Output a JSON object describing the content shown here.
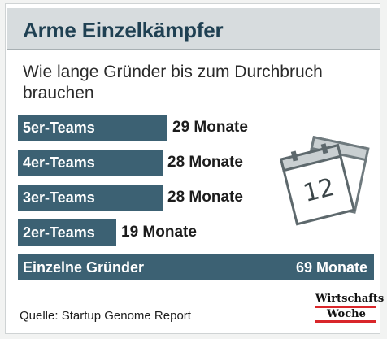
{
  "header": {
    "title": "Arme Einzelkämpfer",
    "subtitle": "Wie lange Gründer bis zum Durchbruch brauchen"
  },
  "chart_data": {
    "type": "bar",
    "orientation": "horizontal",
    "categories": [
      "5er-Teams",
      "4er-Teams",
      "3er-Teams",
      "2er-Teams",
      "Einzelne Gründer"
    ],
    "values": [
      29,
      28,
      28,
      19,
      69
    ],
    "value_labels": [
      "29 Monate",
      "28 Monate",
      "28 Monate",
      "19 Monate",
      "69 Monate"
    ],
    "unit": "Monate",
    "xlim": [
      0,
      69
    ],
    "bar_color": "#3c6173",
    "grid": false,
    "legend": "none"
  },
  "illustration": {
    "icon": "calendar-icon",
    "page_number": "12"
  },
  "footer": {
    "source": "Quelle: Startup Genome Report",
    "brand_line1": "Wirtschafts",
    "brand_line2": "Woche",
    "brand_accent": "#d9262a"
  }
}
